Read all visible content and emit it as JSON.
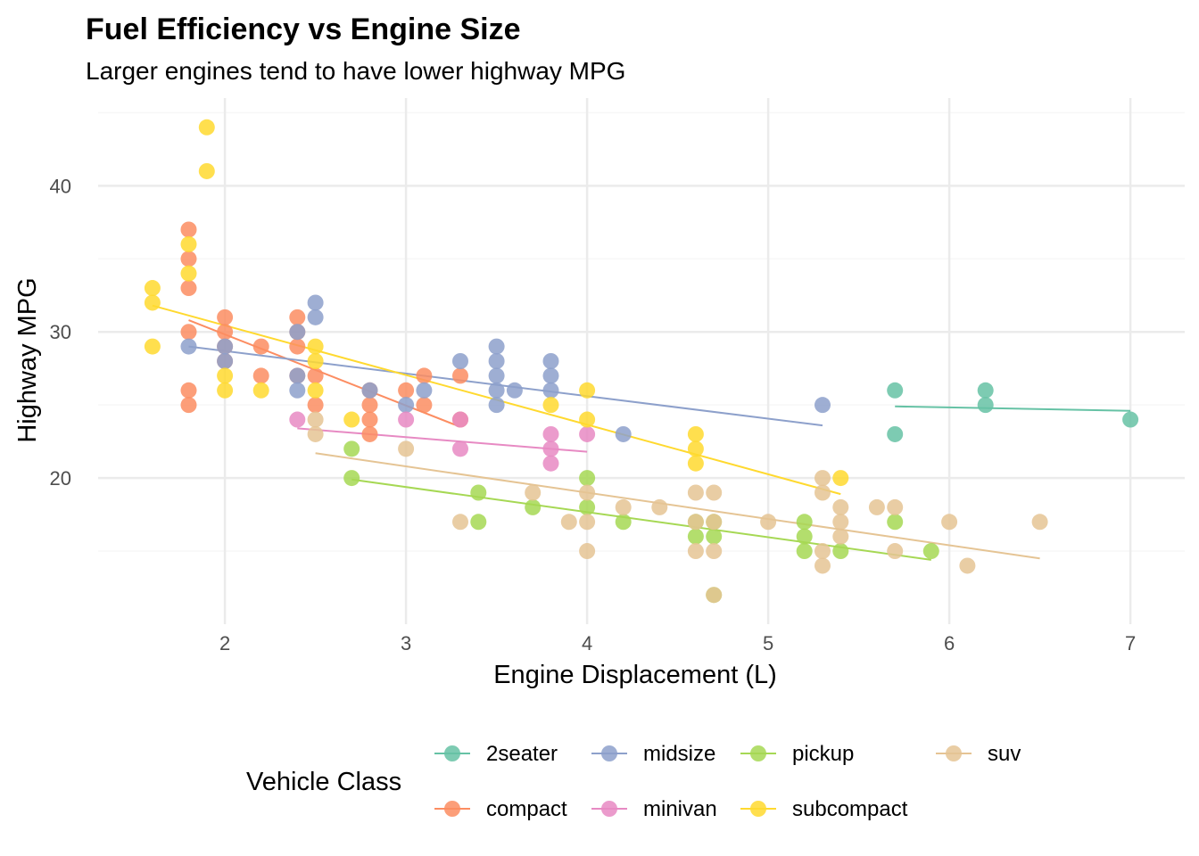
{
  "chart_data": {
    "type": "scatter",
    "title": "Fuel Efficiency vs Engine Size",
    "subtitle": "Larger engines tend to have lower highway MPG",
    "xlabel": "Engine Displacement (L)",
    "ylabel": "Highway MPG",
    "xlim": [
      1.3,
      7.3
    ],
    "ylim": [
      10,
      46
    ],
    "x_ticks": [
      2,
      3,
      4,
      5,
      6,
      7
    ],
    "y_ticks": [
      20,
      30,
      40
    ],
    "grid": true,
    "legend": {
      "title": "Vehicle Class",
      "position": "bottom"
    },
    "series": [
      {
        "name": "2seater",
        "color": "#66C2A5",
        "points": [
          [
            5.7,
            26
          ],
          [
            5.7,
            23
          ],
          [
            6.2,
            26
          ],
          [
            6.2,
            25
          ],
          [
            7.0,
            24
          ]
        ],
        "trend": [
          [
            5.7,
            24.9
          ],
          [
            7.0,
            24.6
          ]
        ]
      },
      {
        "name": "compact",
        "color": "#FC8D62",
        "points": [
          [
            1.8,
            37
          ],
          [
            1.8,
            35
          ],
          [
            1.8,
            33
          ],
          [
            1.8,
            30
          ],
          [
            1.8,
            26
          ],
          [
            1.8,
            25
          ],
          [
            2.0,
            31
          ],
          [
            2.0,
            30
          ],
          [
            2.0,
            29
          ],
          [
            2.0,
            28
          ],
          [
            2.2,
            29
          ],
          [
            2.2,
            27
          ],
          [
            2.4,
            31
          ],
          [
            2.4,
            30
          ],
          [
            2.4,
            29
          ],
          [
            2.4,
            27
          ],
          [
            2.5,
            27
          ],
          [
            2.5,
            25
          ],
          [
            2.8,
            26
          ],
          [
            2.8,
            25
          ],
          [
            2.8,
            24
          ],
          [
            2.8,
            23
          ],
          [
            3.0,
            26
          ],
          [
            3.1,
            27
          ],
          [
            3.1,
            25
          ],
          [
            3.3,
            27
          ],
          [
            3.3,
            24
          ]
        ],
        "trend": [
          [
            1.8,
            30.8
          ],
          [
            3.3,
            23.5
          ]
        ]
      },
      {
        "name": "midsize",
        "color": "#8DA0CB",
        "points": [
          [
            1.8,
            29
          ],
          [
            2.0,
            29
          ],
          [
            2.0,
            28
          ],
          [
            2.4,
            30
          ],
          [
            2.4,
            27
          ],
          [
            2.4,
            26
          ],
          [
            2.5,
            32
          ],
          [
            2.5,
            31
          ],
          [
            2.8,
            26
          ],
          [
            3.0,
            25
          ],
          [
            3.1,
            26
          ],
          [
            3.3,
            28
          ],
          [
            3.5,
            29
          ],
          [
            3.5,
            28
          ],
          [
            3.5,
            27
          ],
          [
            3.5,
            26
          ],
          [
            3.5,
            25
          ],
          [
            3.6,
            26
          ],
          [
            3.8,
            28
          ],
          [
            3.8,
            27
          ],
          [
            3.8,
            26
          ],
          [
            4.2,
            23
          ],
          [
            5.3,
            25
          ]
        ],
        "trend": [
          [
            1.8,
            29.0
          ],
          [
            5.3,
            23.6
          ]
        ]
      },
      {
        "name": "minivan",
        "color": "#E78AC3",
        "points": [
          [
            2.4,
            24
          ],
          [
            3.0,
            24
          ],
          [
            3.3,
            24
          ],
          [
            3.3,
            22
          ],
          [
            3.8,
            23
          ],
          [
            3.8,
            22
          ],
          [
            3.8,
            21
          ],
          [
            4.0,
            23
          ]
        ],
        "trend": [
          [
            2.4,
            23.4
          ],
          [
            4.0,
            21.8
          ]
        ]
      },
      {
        "name": "pickup",
        "color": "#A6D854",
        "points": [
          [
            2.7,
            22
          ],
          [
            2.7,
            20
          ],
          [
            3.4,
            19
          ],
          [
            3.4,
            17
          ],
          [
            3.7,
            18
          ],
          [
            4.0,
            20
          ],
          [
            4.0,
            18
          ],
          [
            4.2,
            17
          ],
          [
            4.6,
            17
          ],
          [
            4.6,
            16
          ],
          [
            4.7,
            17
          ],
          [
            4.7,
            16
          ],
          [
            4.7,
            12
          ],
          [
            5.2,
            17
          ],
          [
            5.2,
            16
          ],
          [
            5.2,
            15
          ],
          [
            5.4,
            15
          ],
          [
            5.7,
            17
          ],
          [
            5.9,
            15
          ]
        ],
        "trend": [
          [
            2.7,
            19.9
          ],
          [
            5.9,
            14.4
          ]
        ]
      },
      {
        "name": "subcompact",
        "color": "#FFD92F",
        "points": [
          [
            1.6,
            33
          ],
          [
            1.6,
            32
          ],
          [
            1.6,
            29
          ],
          [
            1.8,
            36
          ],
          [
            1.8,
            34
          ],
          [
            1.9,
            44
          ],
          [
            1.9,
            41
          ],
          [
            2.0,
            27
          ],
          [
            2.0,
            26
          ],
          [
            2.2,
            26
          ],
          [
            2.5,
            29
          ],
          [
            2.5,
            28
          ],
          [
            2.5,
            26
          ],
          [
            2.7,
            24
          ],
          [
            3.8,
            25
          ],
          [
            4.0,
            26
          ],
          [
            4.0,
            24
          ],
          [
            4.6,
            23
          ],
          [
            4.6,
            22
          ],
          [
            4.6,
            21
          ],
          [
            5.4,
            20
          ]
        ],
        "trend": [
          [
            1.6,
            31.8
          ],
          [
            5.4,
            18.9
          ]
        ]
      },
      {
        "name": "suv",
        "color": "#E5C494",
        "points": [
          [
            2.5,
            24
          ],
          [
            2.5,
            23
          ],
          [
            3.0,
            22
          ],
          [
            3.3,
            17
          ],
          [
            3.7,
            19
          ],
          [
            3.9,
            17
          ],
          [
            4.0,
            19
          ],
          [
            4.0,
            17
          ],
          [
            4.0,
            15
          ],
          [
            4.2,
            18
          ],
          [
            4.4,
            18
          ],
          [
            4.6,
            19
          ],
          [
            4.6,
            17
          ],
          [
            4.6,
            15
          ],
          [
            4.7,
            19
          ],
          [
            4.7,
            17
          ],
          [
            4.7,
            15
          ],
          [
            4.7,
            12
          ],
          [
            5.0,
            17
          ],
          [
            5.3,
            20
          ],
          [
            5.3,
            19
          ],
          [
            5.3,
            15
          ],
          [
            5.3,
            14
          ],
          [
            5.4,
            18
          ],
          [
            5.4,
            17
          ],
          [
            5.4,
            16
          ],
          [
            5.6,
            18
          ],
          [
            5.7,
            18
          ],
          [
            5.7,
            15
          ],
          [
            6.0,
            17
          ],
          [
            6.1,
            14
          ],
          [
            6.5,
            17
          ]
        ],
        "trend": [
          [
            2.5,
            21.7
          ],
          [
            6.5,
            14.5
          ]
        ]
      }
    ]
  }
}
